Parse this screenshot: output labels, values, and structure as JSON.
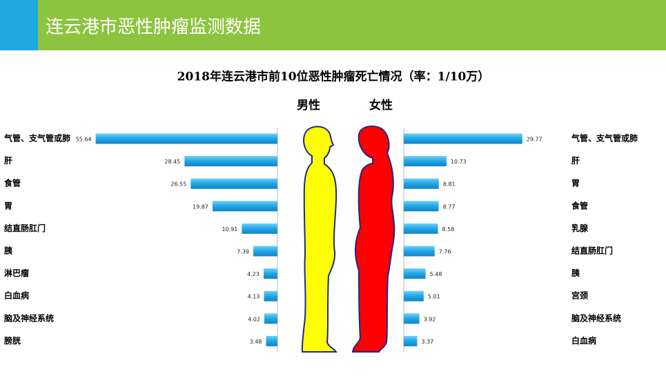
{
  "header": {
    "title": "连云港市恶性肿瘤监测数据"
  },
  "chart_title": "2018年连云港市前10位恶性肿瘤死亡情况（率：1/10万）",
  "chart_data": [
    {
      "type": "bar",
      "orientation": "horizontal",
      "x_reversed": true,
      "subtitle": "男性",
      "color": "#29a9e6",
      "categories": [
        "气管、支气管或肺",
        "肝",
        "食管",
        "胃",
        "结直肠肛门",
        "胰",
        "淋巴瘤",
        "白血病",
        "脑及神经系统",
        "膀胱"
      ],
      "values": [
        55.64,
        28.45,
        26.55,
        19.87,
        10.91,
        7.39,
        4.23,
        4.13,
        4.02,
        3.48
      ],
      "xlim": [
        0,
        60
      ]
    },
    {
      "type": "bar",
      "orientation": "horizontal",
      "x_reversed": false,
      "subtitle": "女性",
      "color": "#29a9e6",
      "categories": [
        "气管、支气管或肺",
        "肝",
        "胃",
        "食管",
        "乳腺",
        "结直肠肛门",
        "胰",
        "宫颈",
        "脑及神经系统",
        "白血病"
      ],
      "values": [
        29.77,
        10.73,
        8.81,
        8.77,
        8.58,
        7.76,
        5.48,
        5.01,
        3.92,
        3.37
      ],
      "xlim": [
        0,
        35
      ]
    }
  ]
}
